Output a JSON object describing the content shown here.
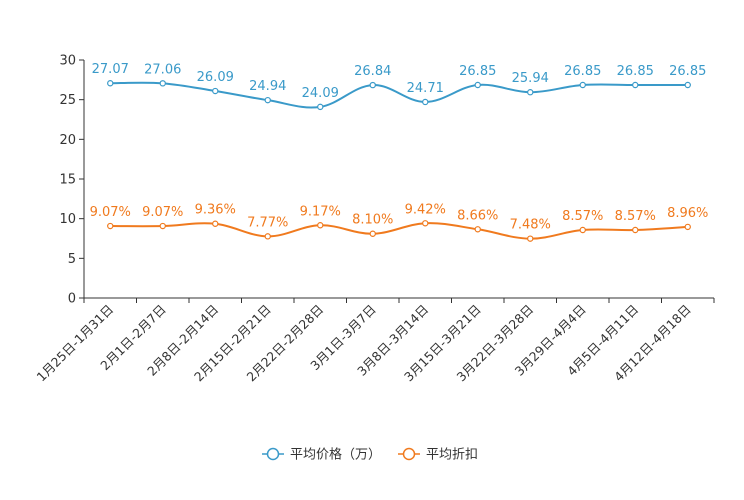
{
  "chart_data": {
    "type": "line",
    "title": "",
    "xlabel": "",
    "ylabel": "",
    "ylim": [
      0,
      30
    ],
    "yticks": [
      0,
      5,
      10,
      15,
      20,
      25,
      30
    ],
    "categories": [
      "1月25日-1月31日",
      "2月1日-2月7日",
      "2月8日-2月14日",
      "2月15日-2月21日",
      "2月22日-2月28日",
      "3月1日-3月7日",
      "3月8日-3月14日",
      "3月15日-3月21日",
      "3月22日-3月28日",
      "3月29日-4月4日",
      "4月5日-4月11日",
      "4月12日-4月18日"
    ],
    "series": [
      {
        "name": "平均价格（万）",
        "color": "#3a9ac9",
        "values": [
          27.07,
          27.06,
          26.09,
          24.94,
          24.09,
          26.84,
          24.71,
          26.85,
          25.94,
          26.85,
          26.85,
          26.85
        ],
        "labels": [
          "27.07",
          "27.06",
          "26.09",
          "24.94",
          "24.09",
          "26.84",
          "24.71",
          "26.85",
          "25.94",
          "26.85",
          "26.85",
          "26.85"
        ]
      },
      {
        "name": "平均折扣",
        "color": "#f07a1e",
        "values": [
          9.07,
          9.07,
          9.36,
          7.77,
          9.17,
          8.1,
          9.42,
          8.66,
          7.48,
          8.57,
          8.57,
          8.96
        ],
        "labels": [
          "9.07%",
          "9.07%",
          "9.36%",
          "7.77%",
          "9.17%",
          "8.10%",
          "9.42%",
          "8.66%",
          "7.48%",
          "8.57%",
          "8.57%",
          "8.96%"
        ]
      }
    ],
    "legend_position": "bottom-center",
    "grid": false
  }
}
